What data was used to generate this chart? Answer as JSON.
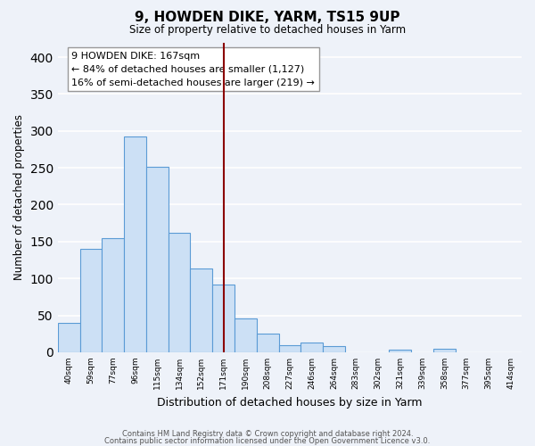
{
  "title": "9, HOWDEN DIKE, YARM, TS15 9UP",
  "subtitle": "Size of property relative to detached houses in Yarm",
  "xlabel": "Distribution of detached houses by size in Yarm",
  "ylabel": "Number of detached properties",
  "categories": [
    "40sqm",
    "59sqm",
    "77sqm",
    "96sqm",
    "115sqm",
    "134sqm",
    "152sqm",
    "171sqm",
    "190sqm",
    "208sqm",
    "227sqm",
    "246sqm",
    "264sqm",
    "283sqm",
    "302sqm",
    "321sqm",
    "339sqm",
    "358sqm",
    "377sqm",
    "395sqm",
    "414sqm"
  ],
  "bar_heights": [
    40,
    140,
    155,
    293,
    251,
    162,
    113,
    92,
    46,
    25,
    10,
    13,
    8,
    0,
    0,
    3,
    0,
    5,
    0,
    0,
    0
  ],
  "bar_color_fill": "#cce0f5",
  "bar_color_edge": "#5b9bd5",
  "vline_category_index": 7,
  "vline_color": "#8b0000",
  "annotation_title": "9 HOWDEN DIKE: 167sqm",
  "annotation_line1": "← 84% of detached houses are smaller (1,127)",
  "annotation_line2": "16% of semi-detached houses are larger (219) →",
  "annotation_box_facecolor": "#ffffff",
  "annotation_box_edgecolor": "#999999",
  "ylim": [
    0,
    420
  ],
  "yticks": [
    0,
    50,
    100,
    150,
    200,
    250,
    300,
    350,
    400
  ],
  "background_color": "#eef2f9",
  "grid_color": "#ffffff",
  "footer_line1": "Contains HM Land Registry data © Crown copyright and database right 2024.",
  "footer_line2": "Contains public sector information licensed under the Open Government Licence v3.0."
}
